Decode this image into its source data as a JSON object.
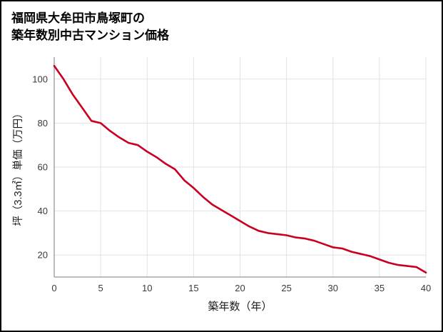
{
  "title": {
    "line1": "福岡県大牟田市鳥塚町の",
    "line2": "築年数別中古マンション価格"
  },
  "chart_data": {
    "type": "line",
    "title": "福岡県大牟田市鳥塚町の築年数別中古マンション価格",
    "xlabel": "築年数（年）",
    "ylabel": "坪（3.3㎡）単価（万円）",
    "x": [
      0,
      1,
      2,
      3,
      4,
      5,
      6,
      7,
      8,
      9,
      10,
      11,
      12,
      13,
      14,
      15,
      16,
      17,
      18,
      19,
      20,
      21,
      22,
      23,
      24,
      25,
      26,
      27,
      28,
      29,
      30,
      31,
      32,
      33,
      34,
      35,
      36,
      37,
      38,
      39,
      40
    ],
    "values": [
      106,
      100,
      93,
      87,
      81,
      80,
      76.5,
      73.5,
      71,
      70,
      67,
      64.5,
      61.5,
      59,
      54,
      50.5,
      46.5,
      43,
      40.5,
      38,
      35.5,
      33,
      31,
      30,
      29.5,
      29,
      28,
      27.5,
      26.5,
      25,
      23.5,
      23,
      21.5,
      20.5,
      19.5,
      18,
      16.5,
      15.5,
      15,
      14.5,
      12
    ],
    "xlim": [
      0,
      40
    ],
    "ylim": [
      10,
      110
    ],
    "x_ticks": [
      0,
      5,
      10,
      15,
      20,
      25,
      30,
      35,
      40
    ],
    "y_ticks": [
      20,
      40,
      60,
      80,
      100
    ],
    "grid": true,
    "legend": "none",
    "line_color": "#c9001f",
    "grid_color": "#e2e2e2",
    "axis_color": "#a6a6a6",
    "tick_label_color": "#3a3a3a",
    "axis_label_color": "#1a1a1a"
  }
}
